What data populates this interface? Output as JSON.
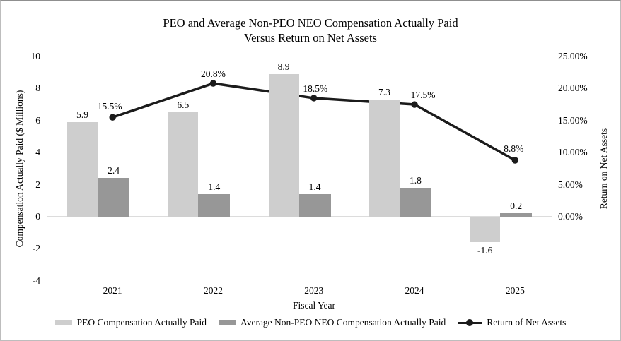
{
  "chart_data": {
    "type": "bar",
    "subtype": "combo bar + line, dual axis",
    "title": "PEO and Average Non-PEO NEO Compensation Actually Paid Versus Return on Net Assets",
    "title_lines": [
      "PEO and Average Non-PEO NEO Compensation Actually Paid",
      "Versus Return on Net Assets"
    ],
    "categories": [
      "2021",
      "2022",
      "2023",
      "2024",
      "2025"
    ],
    "xlabel": "Fiscal Year",
    "ylabel_left": "Compensation Actually Paid ($ Millions)",
    "ylabel_right": "Return on Net Assets",
    "y_left": {
      "min": -4,
      "max": 10,
      "tick_values": [
        10,
        8,
        6,
        4,
        2,
        0,
        -2,
        -4
      ],
      "tick_labels": [
        "10",
        "8",
        "6",
        "4",
        "2",
        "0",
        "-2",
        "-4"
      ]
    },
    "y_right": {
      "min": 0,
      "max": 25,
      "tick_values": [
        25,
        20,
        15,
        10,
        5,
        0
      ],
      "tick_labels": [
        "25.00%",
        "20.00%",
        "15.00%",
        "10.00%",
        "5.00%",
        "0.00%"
      ]
    },
    "grid": false,
    "legend_position": "bottom",
    "series": [
      {
        "name": "PEO Compensation Actually Paid",
        "type": "bar",
        "axis": "left",
        "color": "#cecece",
        "values": [
          5.9,
          6.5,
          8.9,
          7.3,
          -1.6
        ],
        "labels": [
          "5.9",
          "6.5",
          "8.9",
          "7.3",
          "-1.6"
        ]
      },
      {
        "name": "Average Non-PEO NEO Compensation Actually Paid",
        "type": "bar",
        "axis": "left",
        "color": "#979797",
        "values": [
          2.4,
          1.4,
          1.4,
          1.8,
          0.2
        ],
        "labels": [
          "2.4",
          "1.4",
          "1.4",
          "1.8",
          "0.2"
        ]
      },
      {
        "name": "Return of Net Assets",
        "type": "line",
        "axis": "right",
        "color": "#1b1b1b",
        "values": [
          15.5,
          20.8,
          18.5,
          17.5,
          8.8
        ],
        "labels": [
          "15.5%",
          "20.8%",
          "18.5%",
          "17.5%",
          "8.8%"
        ]
      }
    ]
  }
}
